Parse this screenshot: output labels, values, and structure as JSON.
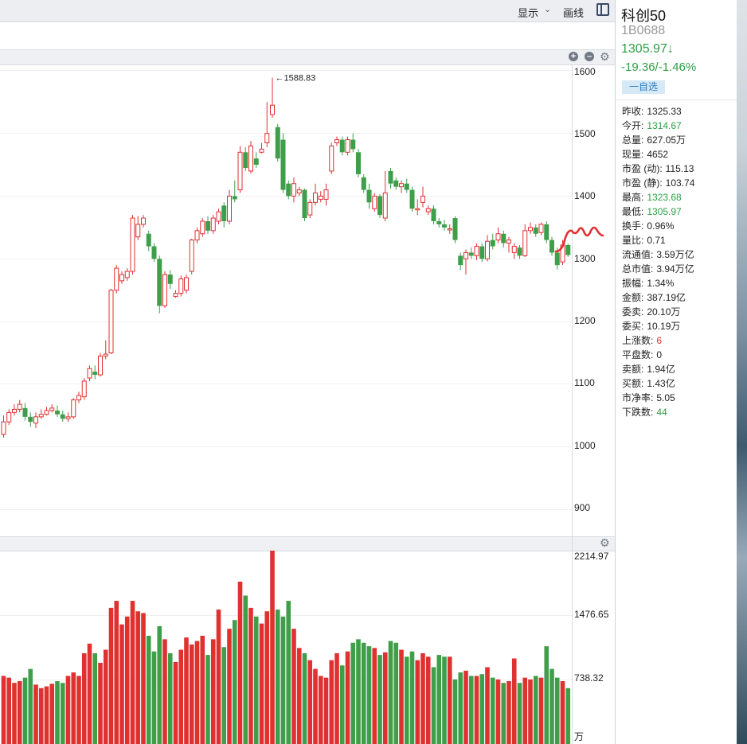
{
  "toolbar": {
    "display_label": "显示",
    "draw_label": "画线",
    "chevron_icon": "chevron-down-icon",
    "layout_icon": "panel-layout-icon"
  },
  "price_axis": {
    "ticks": [
      "1600",
      "1500",
      "1400",
      "1300",
      "1200",
      "1100",
      "1000",
      "900"
    ]
  },
  "volume_axis": {
    "ticks": [
      "2214.97",
      "1476.65",
      "738.32",
      "万"
    ]
  },
  "high_marker": "←1588.83",
  "side": {
    "name": "科创50",
    "code": "1B0688",
    "price": "1305.97↓",
    "change": "-19.36/-1.46%",
    "watch_button": "一自选",
    "stats": [
      {
        "label": "昨收:",
        "value": "1325.33",
        "color": ""
      },
      {
        "label": "今开:",
        "value": "1314.67",
        "color": "green"
      },
      {
        "label": "总量:",
        "value": "627.05万",
        "color": ""
      },
      {
        "label": "现量:",
        "value": "4652",
        "color": ""
      },
      {
        "label": "市盈 (动):",
        "value": "115.13",
        "color": ""
      },
      {
        "label": "市盈 (静):",
        "value": "103.74",
        "color": ""
      },
      {
        "label": "最高:",
        "value": "1323.68",
        "color": "green"
      },
      {
        "label": "最低:",
        "value": "1305.97",
        "color": "green"
      },
      {
        "label": "换手:",
        "value": "0.96%",
        "color": ""
      },
      {
        "label": "量比:",
        "value": "0.71",
        "color": ""
      },
      {
        "label": "流通值:",
        "value": "3.59万亿",
        "color": ""
      },
      {
        "label": "总市值:",
        "value": "3.94万亿",
        "color": ""
      },
      {
        "label": "振幅:",
        "value": "1.34%",
        "color": ""
      },
      {
        "label": "金额:",
        "value": "387.19亿",
        "color": ""
      },
      {
        "label": "委卖:",
        "value": "20.10万",
        "color": ""
      },
      {
        "label": "委买:",
        "value": "10.19万",
        "color": ""
      },
      {
        "label": "上涨数:",
        "value": "6",
        "color": "red"
      },
      {
        "label": "平盘数:",
        "value": "0",
        "color": ""
      },
      {
        "label": "卖额:",
        "value": "1.94亿",
        "color": ""
      },
      {
        "label": "买额:",
        "value": "1.43亿",
        "color": ""
      },
      {
        "label": "市净率:",
        "value": "5.05",
        "color": ""
      },
      {
        "label": "下跌数:",
        "value": "44",
        "color": "green"
      }
    ]
  },
  "colors": {
    "up": "#e03131",
    "down": "#3f9e4a",
    "accent": "#2d7ec4"
  },
  "chart_data": {
    "type": "candlestick",
    "ylim": [
      860,
      1610
    ],
    "volume_ylim": [
      0,
      2214.97
    ],
    "candles": [
      {
        "o": 1020,
        "c": 1040,
        "h": 1050,
        "l": 1015,
        "v": 780
      },
      {
        "o": 1040,
        "c": 1055,
        "h": 1060,
        "l": 1035,
        "v": 760
      },
      {
        "o": 1055,
        "c": 1060,
        "h": 1068,
        "l": 1050,
        "v": 700
      },
      {
        "o": 1060,
        "c": 1068,
        "h": 1075,
        "l": 1055,
        "v": 720
      },
      {
        "o": 1062,
        "c": 1048,
        "h": 1070,
        "l": 1042,
        "v": 760
      },
      {
        "o": 1048,
        "c": 1040,
        "h": 1055,
        "l": 1032,
        "v": 860
      },
      {
        "o": 1038,
        "c": 1048,
        "h": 1055,
        "l": 1030,
        "v": 680
      },
      {
        "o": 1048,
        "c": 1052,
        "h": 1060,
        "l": 1045,
        "v": 640
      },
      {
        "o": 1052,
        "c": 1058,
        "h": 1064,
        "l": 1050,
        "v": 660
      },
      {
        "o": 1058,
        "c": 1062,
        "h": 1068,
        "l": 1055,
        "v": 690
      },
      {
        "o": 1058,
        "c": 1052,
        "h": 1066,
        "l": 1048,
        "v": 720
      },
      {
        "o": 1052,
        "c": 1045,
        "h": 1058,
        "l": 1040,
        "v": 700
      },
      {
        "o": 1045,
        "c": 1048,
        "h": 1055,
        "l": 1040,
        "v": 780
      },
      {
        "o": 1048,
        "c": 1075,
        "h": 1078,
        "l": 1045,
        "v": 820
      },
      {
        "o": 1075,
        "c": 1082,
        "h": 1088,
        "l": 1070,
        "v": 780
      },
      {
        "o": 1080,
        "c": 1105,
        "h": 1110,
        "l": 1075,
        "v": 1040
      },
      {
        "o": 1110,
        "c": 1125,
        "h": 1130,
        "l": 1105,
        "v": 1150
      },
      {
        "o": 1120,
        "c": 1115,
        "h": 1130,
        "l": 1108,
        "v": 1040
      },
      {
        "o": 1115,
        "c": 1145,
        "h": 1150,
        "l": 1112,
        "v": 930
      },
      {
        "o": 1145,
        "c": 1148,
        "h": 1170,
        "l": 1140,
        "v": 1080
      },
      {
        "o": 1150,
        "c": 1250,
        "h": 1252,
        "l": 1148,
        "v": 1560
      },
      {
        "o": 1250,
        "c": 1285,
        "h": 1290,
        "l": 1245,
        "v": 1640
      },
      {
        "o": 1265,
        "c": 1275,
        "h": 1280,
        "l": 1260,
        "v": 1370
      },
      {
        "o": 1270,
        "c": 1280,
        "h": 1285,
        "l": 1265,
        "v": 1460
      },
      {
        "o": 1280,
        "c": 1365,
        "h": 1370,
        "l": 1275,
        "v": 1640
      },
      {
        "o": 1335,
        "c": 1355,
        "h": 1368,
        "l": 1330,
        "v": 1520
      },
      {
        "o": 1355,
        "c": 1365,
        "h": 1370,
        "l": 1350,
        "v": 1500
      },
      {
        "o": 1340,
        "c": 1320,
        "h": 1345,
        "l": 1312,
        "v": 1240
      },
      {
        "o": 1320,
        "c": 1300,
        "h": 1325,
        "l": 1295,
        "v": 1060
      },
      {
        "o": 1300,
        "c": 1225,
        "h": 1305,
        "l": 1213,
        "v": 1350
      },
      {
        "o": 1225,
        "c": 1275,
        "h": 1280,
        "l": 1222,
        "v": 1200
      },
      {
        "o": 1275,
        "c": 1260,
        "h": 1282,
        "l": 1252,
        "v": 1040
      },
      {
        "o": 1240,
        "c": 1245,
        "h": 1250,
        "l": 1238,
        "v": 940
      },
      {
        "o": 1245,
        "c": 1268,
        "h": 1273,
        "l": 1240,
        "v": 1080
      },
      {
        "o": 1250,
        "c": 1270,
        "h": 1275,
        "l": 1245,
        "v": 1220
      },
      {
        "o": 1280,
        "c": 1330,
        "h": 1332,
        "l": 1275,
        "v": 1140
      },
      {
        "o": 1330,
        "c": 1345,
        "h": 1350,
        "l": 1325,
        "v": 1180
      },
      {
        "o": 1340,
        "c": 1360,
        "h": 1365,
        "l": 1335,
        "v": 1240
      },
      {
        "o": 1360,
        "c": 1345,
        "h": 1368,
        "l": 1340,
        "v": 1020
      },
      {
        "o": 1345,
        "c": 1365,
        "h": 1370,
        "l": 1340,
        "v": 1200
      },
      {
        "o": 1360,
        "c": 1375,
        "h": 1380,
        "l": 1355,
        "v": 1540
      },
      {
        "o": 1385,
        "c": 1360,
        "h": 1390,
        "l": 1350,
        "v": 1110
      },
      {
        "o": 1360,
        "c": 1400,
        "h": 1410,
        "l": 1355,
        "v": 1320
      },
      {
        "o": 1400,
        "c": 1395,
        "h": 1425,
        "l": 1390,
        "v": 1420
      },
      {
        "o": 1410,
        "c": 1470,
        "h": 1480,
        "l": 1405,
        "v": 1860
      },
      {
        "o": 1470,
        "c": 1445,
        "h": 1478,
        "l": 1440,
        "v": 1700
      },
      {
        "o": 1440,
        "c": 1480,
        "h": 1488,
        "l": 1436,
        "v": 1560
      },
      {
        "o": 1460,
        "c": 1450,
        "h": 1470,
        "l": 1445,
        "v": 1460
      },
      {
        "o": 1470,
        "c": 1475,
        "h": 1485,
        "l": 1468,
        "v": 1380
      },
      {
        "o": 1485,
        "c": 1500,
        "h": 1550,
        "l": 1478,
        "v": 1520
      },
      {
        "o": 1530,
        "c": 1545,
        "h": 1588.83,
        "l": 1525,
        "v": 2214.97
      },
      {
        "o": 1510,
        "c": 1460,
        "h": 1515,
        "l": 1455,
        "v": 1540
      },
      {
        "o": 1490,
        "c": 1410,
        "h": 1500,
        "l": 1405,
        "v": 1460
      },
      {
        "o": 1420,
        "c": 1400,
        "h": 1425,
        "l": 1395,
        "v": 1640
      },
      {
        "o": 1400,
        "c": 1420,
        "h": 1430,
        "l": 1390,
        "v": 1320
      },
      {
        "o": 1405,
        "c": 1410,
        "h": 1415,
        "l": 1400,
        "v": 1100
      },
      {
        "o": 1410,
        "c": 1365,
        "h": 1412,
        "l": 1360,
        "v": 1040
      },
      {
        "o": 1370,
        "c": 1390,
        "h": 1395,
        "l": 1365,
        "v": 960
      },
      {
        "o": 1390,
        "c": 1405,
        "h": 1420,
        "l": 1385,
        "v": 860
      },
      {
        "o": 1395,
        "c": 1400,
        "h": 1408,
        "l": 1390,
        "v": 780
      },
      {
        "o": 1395,
        "c": 1410,
        "h": 1420,
        "l": 1385,
        "v": 760
      },
      {
        "o": 1440,
        "c": 1480,
        "h": 1485,
        "l": 1435,
        "v": 960
      },
      {
        "o": 1485,
        "c": 1490,
        "h": 1495,
        "l": 1480,
        "v": 1040
      },
      {
        "o": 1490,
        "c": 1470,
        "h": 1495,
        "l": 1465,
        "v": 900
      },
      {
        "o": 1470,
        "c": 1490,
        "h": 1495,
        "l": 1465,
        "v": 1060
      },
      {
        "o": 1490,
        "c": 1475,
        "h": 1500,
        "l": 1470,
        "v": 1160
      },
      {
        "o": 1470,
        "c": 1435,
        "h": 1475,
        "l": 1430,
        "v": 1200
      },
      {
        "o": 1430,
        "c": 1410,
        "h": 1435,
        "l": 1405,
        "v": 1160
      },
      {
        "o": 1410,
        "c": 1390,
        "h": 1420,
        "l": 1380,
        "v": 1120
      },
      {
        "o": 1380,
        "c": 1400,
        "h": 1405,
        "l": 1375,
        "v": 1100
      },
      {
        "o": 1400,
        "c": 1370,
        "h": 1403,
        "l": 1365,
        "v": 1020
      },
      {
        "o": 1365,
        "c": 1405,
        "h": 1440,
        "l": 1360,
        "v": 1050
      },
      {
        "o": 1440,
        "c": 1420,
        "h": 1445,
        "l": 1412,
        "v": 1180
      },
      {
        "o": 1425,
        "c": 1415,
        "h": 1430,
        "l": 1410,
        "v": 1160
      },
      {
        "o": 1415,
        "c": 1420,
        "h": 1425,
        "l": 1405,
        "v": 1080
      },
      {
        "o": 1420,
        "c": 1410,
        "h": 1428,
        "l": 1405,
        "v": 1000
      },
      {
        "o": 1410,
        "c": 1380,
        "h": 1415,
        "l": 1375,
        "v": 1060
      },
      {
        "o": 1380,
        "c": 1380,
        "h": 1395,
        "l": 1370,
        "v": 960
      },
      {
        "o": 1390,
        "c": 1400,
        "h": 1415,
        "l": 1382,
        "v": 1040
      },
      {
        "o": 1375,
        "c": 1380,
        "h": 1385,
        "l": 1370,
        "v": 1000
      },
      {
        "o": 1380,
        "c": 1360,
        "h": 1385,
        "l": 1355,
        "v": 880
      },
      {
        "o": 1360,
        "c": 1355,
        "h": 1365,
        "l": 1350,
        "v": 1020
      },
      {
        "o": 1355,
        "c": 1350,
        "h": 1362,
        "l": 1345,
        "v": 1000
      },
      {
        "o": 1348,
        "c": 1348,
        "h": 1355,
        "l": 1340,
        "v": 1000
      },
      {
        "o": 1365,
        "c": 1330,
        "h": 1368,
        "l": 1325,
        "v": 740
      },
      {
        "o": 1305,
        "c": 1290,
        "h": 1310,
        "l": 1282,
        "v": 820
      },
      {
        "o": 1300,
        "c": 1310,
        "h": 1315,
        "l": 1275,
        "v": 840
      },
      {
        "o": 1310,
        "c": 1305,
        "h": 1318,
        "l": 1300,
        "v": 780
      },
      {
        "o": 1305,
        "c": 1320,
        "h": 1325,
        "l": 1298,
        "v": 780
      },
      {
        "o": 1320,
        "c": 1300,
        "h": 1325,
        "l": 1295,
        "v": 800
      },
      {
        "o": 1300,
        "c": 1328,
        "h": 1338,
        "l": 1296,
        "v": 880
      },
      {
        "o": 1330,
        "c": 1320,
        "h": 1340,
        "l": 1315,
        "v": 760
      },
      {
        "o": 1330,
        "c": 1340,
        "h": 1350,
        "l": 1325,
        "v": 740
      },
      {
        "o": 1340,
        "c": 1325,
        "h": 1345,
        "l": 1318,
        "v": 700
      },
      {
        "o": 1325,
        "c": 1330,
        "h": 1335,
        "l": 1310,
        "v": 720
      },
      {
        "o": 1310,
        "c": 1320,
        "h": 1325,
        "l": 1300,
        "v": 980
      },
      {
        "o": 1318,
        "c": 1305,
        "h": 1322,
        "l": 1300,
        "v": 700
      },
      {
        "o": 1305,
        "c": 1345,
        "h": 1355,
        "l": 1303,
        "v": 760
      },
      {
        "o": 1345,
        "c": 1350,
        "h": 1358,
        "l": 1340,
        "v": 740
      },
      {
        "o": 1350,
        "c": 1340,
        "h": 1355,
        "l": 1335,
        "v": 780
      },
      {
        "o": 1342,
        "c": 1355,
        "h": 1358,
        "l": 1338,
        "v": 760
      },
      {
        "o": 1355,
        "c": 1330,
        "h": 1360,
        "l": 1325,
        "v": 1120
      },
      {
        "o": 1330,
        "c": 1310,
        "h": 1335,
        "l": 1305,
        "v": 860
      },
      {
        "o": 1310,
        "c": 1290,
        "h": 1318,
        "l": 1283,
        "v": 760
      },
      {
        "o": 1295,
        "c": 1322,
        "h": 1330,
        "l": 1290,
        "v": 720
      },
      {
        "o": 1322,
        "c": 1306,
        "h": 1324,
        "l": 1303,
        "v": 640
      }
    ]
  }
}
